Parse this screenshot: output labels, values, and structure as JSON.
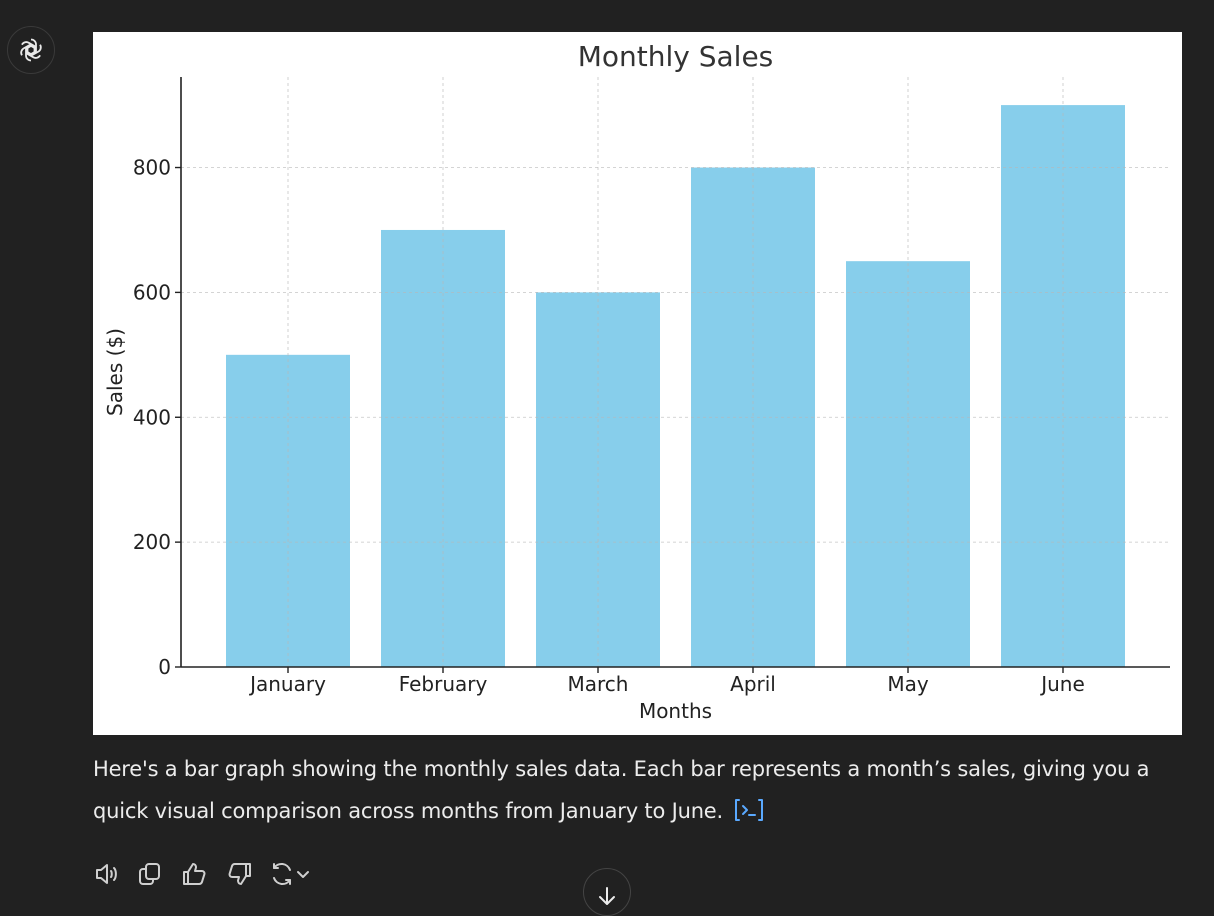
{
  "icons": {
    "assistant_avatar": "openai-logo-icon",
    "code_link": "code-terminal-icon",
    "read_aloud": "speaker-icon",
    "copy": "copy-icon",
    "like": "thumbs-up-icon",
    "dislike": "thumbs-down-icon",
    "regenerate": "refresh-icon",
    "model_menu": "chevron-down-icon",
    "scroll_down": "arrow-down-icon"
  },
  "colors": {
    "background": "#212121",
    "bar": "#87ceeb",
    "link_accent": "#5aa9ff",
    "text": "#ececec"
  },
  "message": {
    "line1": "Here's a bar graph showing the monthly sales data. Each bar represents a month’s sales, giving you a",
    "line2": "quick visual comparison across months from January to June."
  },
  "chart_data": {
    "type": "bar",
    "title": "Monthly Sales",
    "xlabel": "Months",
    "ylabel": "Sales ($)",
    "categories": [
      "January",
      "February",
      "March",
      "April",
      "May",
      "June"
    ],
    "values": [
      500,
      700,
      600,
      800,
      650,
      900
    ],
    "ylim": [
      0,
      945
    ],
    "yticks": [
      0,
      200,
      400,
      600,
      800
    ],
    "grid": true,
    "bar_color": "#87ceeb"
  }
}
